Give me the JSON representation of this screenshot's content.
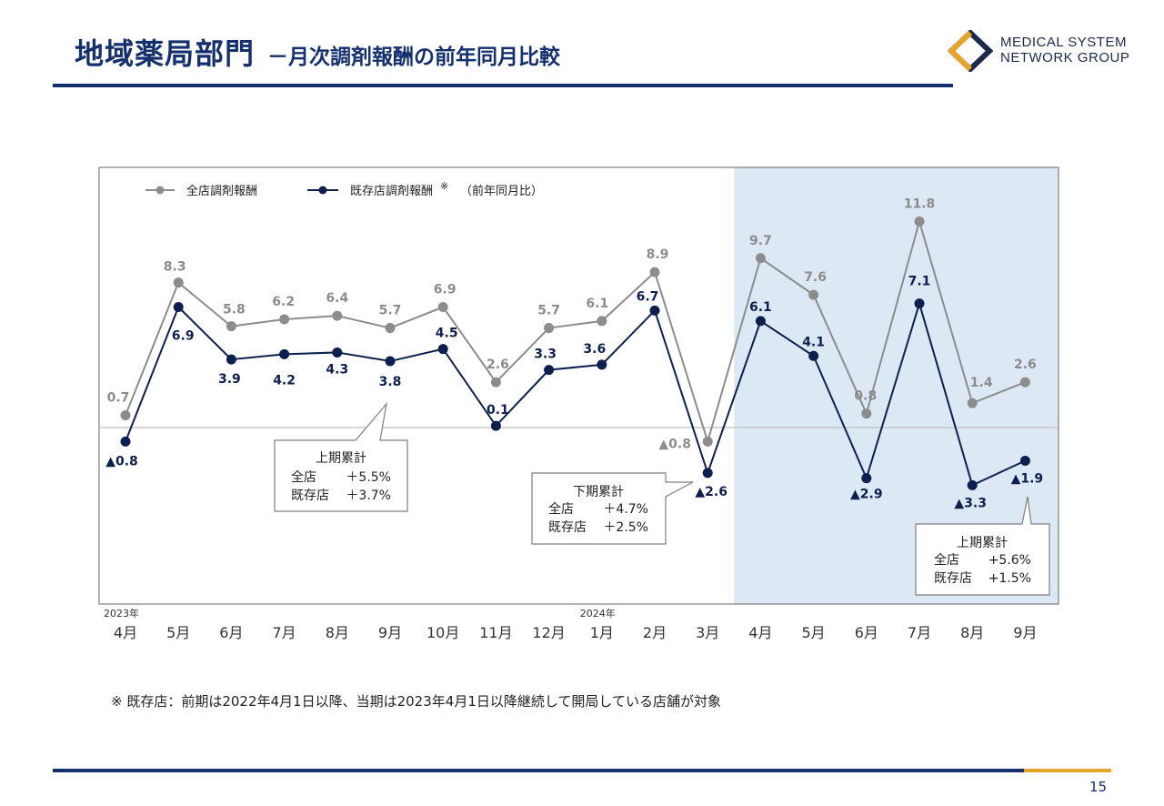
{
  "header": {
    "title": "地域薬局部門",
    "subtitle": "－月次調剤報酬の前年同月比較"
  },
  "logo": {
    "line1": "MEDICAL SYSTEM",
    "line2": "NETWORK GROUP",
    "icon": "diamond-logo-icon",
    "colors": {
      "navy": "#1b2a4a",
      "gold": "#e6a528"
    }
  },
  "chart_data": {
    "type": "line",
    "categories": [
      "4月",
      "5月",
      "6月",
      "7月",
      "8月",
      "9月",
      "10月",
      "11月",
      "12月",
      "1月",
      "2月",
      "3月",
      "4月",
      "5月",
      "6月",
      "7月",
      "8月",
      "9月"
    ],
    "year_labels": [
      {
        "index": 0,
        "label": "2023年"
      },
      {
        "index": 9,
        "label": "2024年"
      }
    ],
    "ylim": [
      -4,
      13
    ],
    "zero_line": true,
    "series": [
      {
        "name": "全店調剤報酬",
        "color": "#8c8c8c",
        "values": [
          0.7,
          8.3,
          5.8,
          6.2,
          6.4,
          5.7,
          6.9,
          2.6,
          5.7,
          6.1,
          8.9,
          -0.8,
          9.7,
          7.6,
          0.8,
          11.8,
          1.4,
          2.6
        ],
        "labels": [
          "0.7",
          "8.3",
          "5.8",
          "6.2",
          "6.4",
          "5.7",
          "6.9",
          "2.6",
          "5.7",
          "6.1",
          "8.9",
          "▲0.8",
          "9.7",
          "7.6",
          "0.8",
          "11.8",
          "1.4",
          "2.6"
        ]
      },
      {
        "name": "既存店調剤報酬",
        "color": "#0d1f4f",
        "values": [
          -0.8,
          6.9,
          3.9,
          4.2,
          4.3,
          3.8,
          4.5,
          0.1,
          3.3,
          3.6,
          6.7,
          -2.6,
          6.1,
          4.1,
          -2.9,
          7.1,
          -3.3,
          -1.9
        ],
        "labels": [
          "▲0.8",
          "6.9",
          "3.9",
          "4.2",
          "4.3",
          "3.8",
          "4.5",
          "0.1",
          "3.3",
          "3.6",
          "6.7",
          "▲2.6",
          "6.1",
          "4.1",
          "▲2.9",
          "7.1",
          "▲3.3",
          "▲1.9"
        ]
      }
    ],
    "legend": {
      "item1": "全店調剤報酬",
      "item2": "既存店調剤報酬",
      "note_mark": "※",
      "suffix": "（前年同月比）"
    },
    "highlight": {
      "start_index": 12,
      "end_index": 17,
      "color": "#dce8f4"
    },
    "callouts": [
      {
        "title": "上期累計",
        "row1_label": "全店",
        "row1_value": "＋5.5%",
        "row2_label": "既存店",
        "row2_value": "＋3.7%"
      },
      {
        "title": "下期累計",
        "row1_label": "全店",
        "row1_value": "＋4.7%",
        "row2_label": "既存店",
        "row2_value": "＋2.5%"
      },
      {
        "title": "上期累計",
        "row1_label": "全店",
        "row1_value": "+5.6%",
        "row2_label": "既存店",
        "row2_value": "+1.5%"
      }
    ]
  },
  "footnote": "※ 既存店：前期は2022年4月1日以降、当期は2023年4月1日以降継続して開局している店舗が対象",
  "page_number": "15"
}
